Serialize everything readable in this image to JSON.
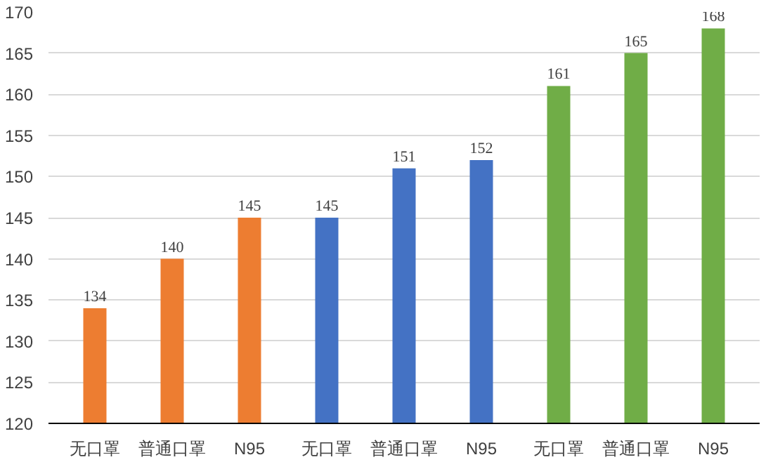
{
  "chart_data": {
    "type": "bar",
    "categories": [
      "无口罩",
      "普通口罩",
      "N95",
      "无口罩",
      "普通口罩",
      "N95",
      "无口罩",
      "普通口罩",
      "N95"
    ],
    "values": [
      134,
      140,
      145,
      145,
      151,
      152,
      161,
      165,
      168
    ],
    "colors": [
      "#ed7d31",
      "#ed7d31",
      "#ed7d31",
      "#4472c4",
      "#4472c4",
      "#4472c4",
      "#70ad47",
      "#70ad47",
      "#70ad47"
    ],
    "ylim": [
      120,
      170
    ],
    "yticks": [
      120,
      125,
      130,
      135,
      140,
      145,
      150,
      155,
      160,
      165,
      170
    ],
    "grid": "y",
    "data_labels": true
  }
}
